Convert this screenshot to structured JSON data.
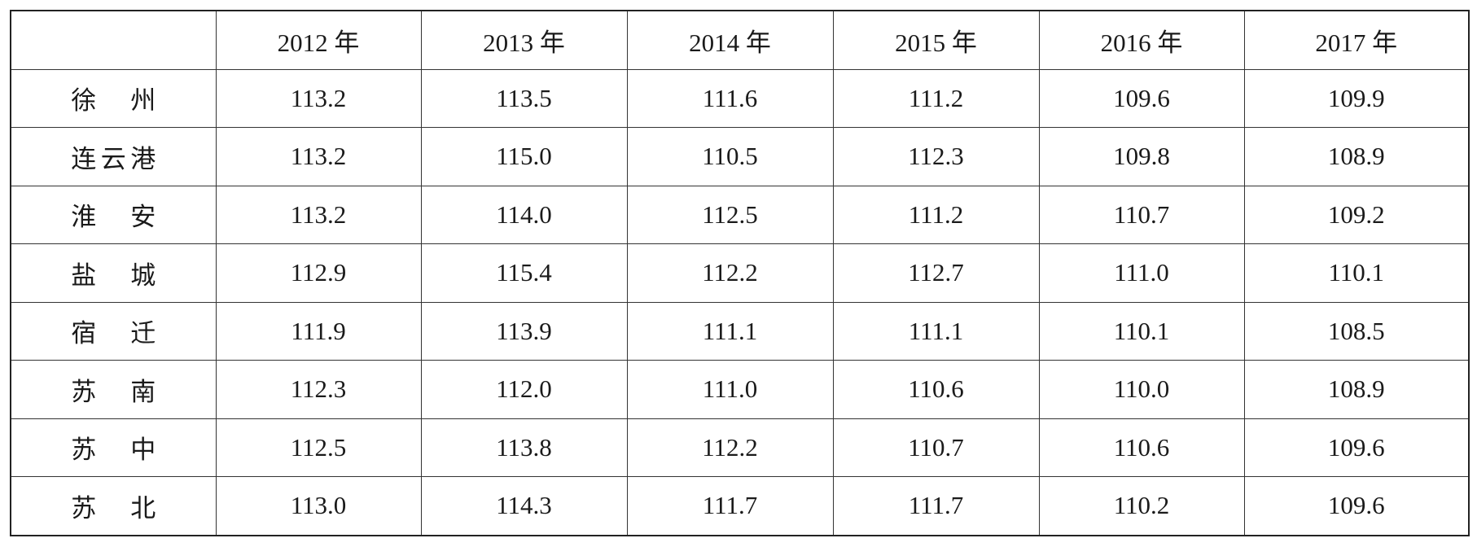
{
  "table": {
    "header": [
      "",
      "2012 年",
      "2013 年",
      "2014 年",
      "2015 年",
      "2016 年",
      "2017 年"
    ],
    "rows": [
      [
        "徐州",
        "113.2",
        "113.5",
        "111.6",
        "111.2",
        "109.6",
        "109.9"
      ],
      [
        "连云港",
        "113.2",
        "115.0",
        "110.5",
        "112.3",
        "109.8",
        "108.9"
      ],
      [
        "淮安",
        "113.2",
        "114.0",
        "112.5",
        "111.2",
        "110.7",
        "109.2"
      ],
      [
        "盐城",
        "112.9",
        "115.4",
        "112.2",
        "112.7",
        "111.0",
        "110.1"
      ],
      [
        "宿迁",
        "111.9",
        "113.9",
        "111.1",
        "111.1",
        "110.1",
        "108.5"
      ],
      [
        "苏南",
        "112.3",
        "112.0",
        "111.0",
        "110.6",
        "110.0",
        "108.9"
      ],
      [
        "苏中",
        "112.5",
        "113.8",
        "112.2",
        "110.7",
        "110.6",
        "109.6"
      ],
      [
        "苏北",
        "113.0",
        "114.3",
        "111.7",
        "111.7",
        "110.2",
        "109.6"
      ]
    ]
  }
}
